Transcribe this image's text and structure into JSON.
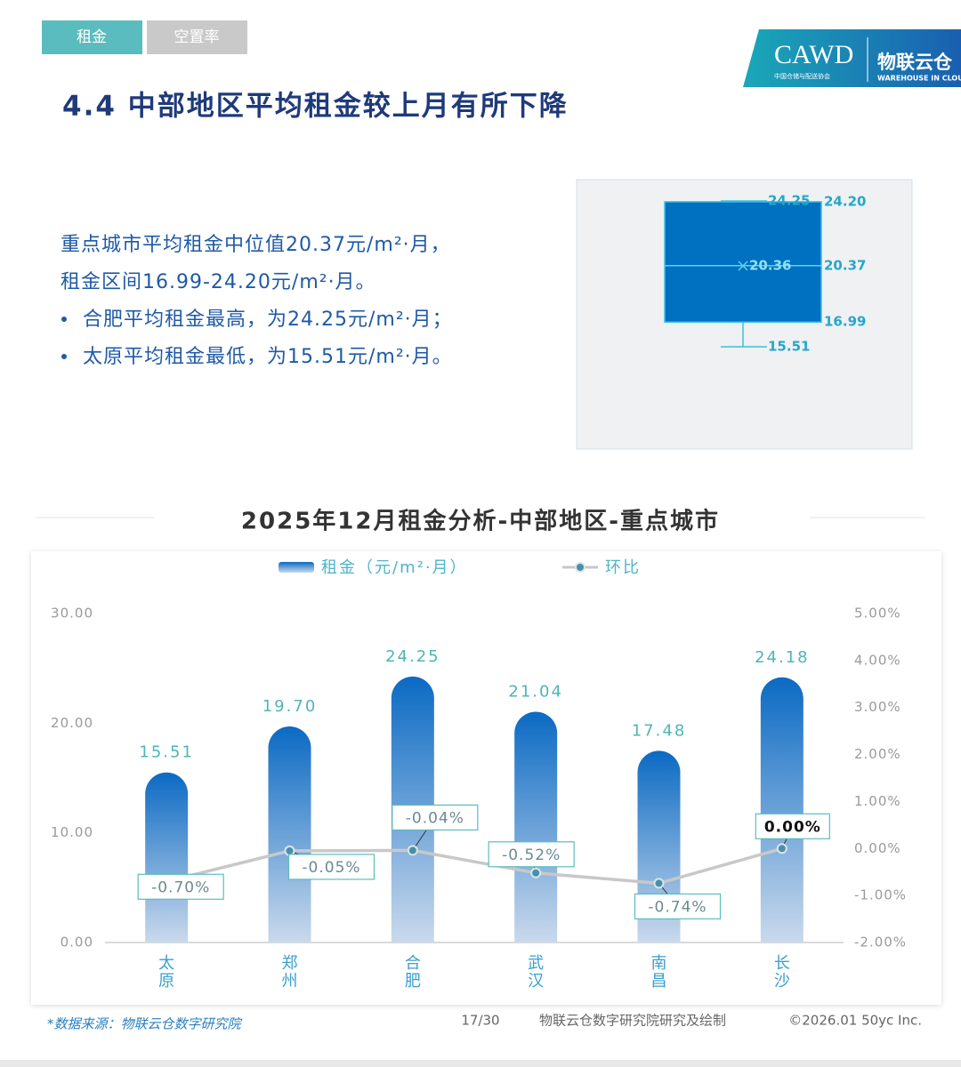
{
  "tabs": [
    "租金",
    "空置率"
  ],
  "logo": {
    "org": "CAWD",
    "org_sub": "中国仓储与配送协会",
    "brand": "物联云仓",
    "brand_sub": "WAREHOUSE IN CLOUD"
  },
  "heading": "4.4 中部地区平均租金较上月有所下降",
  "summary": {
    "lines": [
      "重点城市平均租金中位值20.37元/m²·月，",
      "租金区间16.99-24.20元/m²·月。"
    ],
    "bullets": [
      "合肥平均租金最高，为24.25元/m²·月；",
      "太原平均租金最低，为15.51元/m²·月。"
    ]
  },
  "chart_data": [
    {
      "type": "box",
      "values": [
        24.25,
        24.2,
        20.37,
        20.36,
        16.99,
        15.51
      ],
      "value_labels": [
        "24.25",
        "24.20",
        "20.37",
        "20.36",
        "16.99",
        "15.51"
      ],
      "color": "#0070c0"
    },
    {
      "type": "bar",
      "title": "2025年12月租金分析-中部地区-重点城市",
      "categories": [
        "太原",
        "郑州",
        "合肥",
        "武汉",
        "南昌",
        "长沙"
      ],
      "series": [
        {
          "name": "租金（元/m²·月）",
          "color": "#0b6ac3",
          "values": [
            15.51,
            19.7,
            24.25,
            21.04,
            17.48,
            24.18
          ],
          "value_labels": [
            "15.51",
            "19.70",
            "24.25",
            "21.04",
            "17.48",
            "24.18"
          ]
        },
        {
          "name": "环比",
          "type": "line",
          "axis": "y2",
          "color": "#c8c8c8",
          "values": [
            -0.7,
            -0.05,
            -0.04,
            -0.52,
            -0.74,
            0
          ],
          "value_labels": [
            "-0.70%",
            "-0.05%",
            "-0.04%",
            "-0.52%",
            "-0.74%",
            "0.00%"
          ]
        }
      ],
      "ylim": [
        0,
        30
      ],
      "yticks": [
        {
          "value": 0,
          "label": "0.00"
        },
        {
          "value": 10,
          "label": "10.00"
        },
        {
          "value": 20,
          "label": "20.00"
        },
        {
          "value": 30,
          "label": "30.00"
        }
      ],
      "y2lim": [
        -2,
        5
      ],
      "y2ticks": [
        {
          "value": -2,
          "label": "-2.00%"
        },
        {
          "value": -1,
          "label": "-1.00%"
        },
        {
          "value": 0,
          "label": "0.00%"
        },
        {
          "value": 1,
          "label": "1.00%"
        },
        {
          "value": 2,
          "label": "2.00%"
        },
        {
          "value": 3,
          "label": "3.00%"
        },
        {
          "value": 4,
          "label": "4.00%"
        },
        {
          "value": 5,
          "label": "5.00%"
        }
      ],
      "grid": false
    }
  ],
  "footer": {
    "source": "*数据来源：物联云仓数字研究院",
    "page": "17/30",
    "credit": "物联云仓数字研究院研究及绘制",
    "copyright": "©2026.01 50yc Inc."
  }
}
